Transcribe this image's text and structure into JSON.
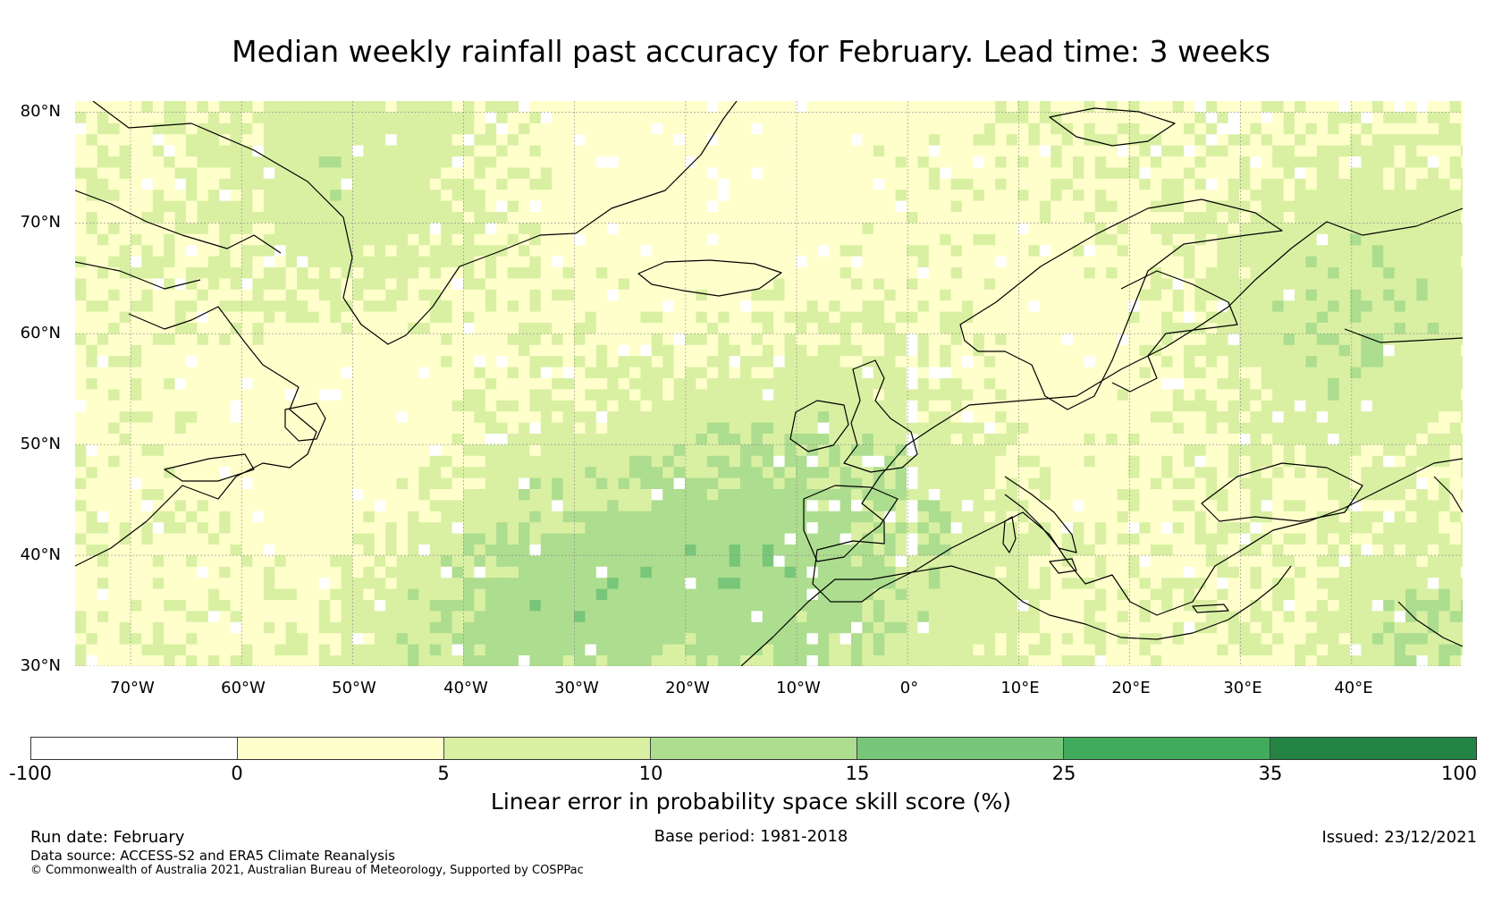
{
  "title": "Median weekly rainfall past accuracy for February. Lead time: 3 weeks",
  "map": {
    "lat_labels": [
      "80°N",
      "70°N",
      "60°N",
      "50°N",
      "40°N",
      "30°N"
    ],
    "lon_labels": [
      "70°W",
      "60°W",
      "50°W",
      "40°W",
      "30°W",
      "20°W",
      "10°W",
      "0°",
      "10°E",
      "20°E",
      "30°E",
      "40°E"
    ],
    "lat_range": [
      30,
      81
    ],
    "lon_range": [
      -75,
      50
    ],
    "coastline_color": "#000000",
    "gridline_color": "#888888"
  },
  "colorbar": {
    "ticks": [
      "-100",
      "0",
      "5",
      "10",
      "15",
      "25",
      "35",
      "100"
    ],
    "colors": [
      "#ffffff",
      "#ffffcc",
      "#d9f0a3",
      "#addd8e",
      "#78c679",
      "#41ab5d",
      "#238443"
    ],
    "label": "Linear error in probability space skill score (%)"
  },
  "footer": {
    "run_date": "Run date: February",
    "base_period": "Base period: 1981-2018",
    "issued": "Issued: 23/12/2021",
    "data_source": "Data source: ACCESS-S2 and ERA5 Climate Reanalysis",
    "copyright": "© Commonwealth of Australia 2021, Australian Bureau of Meteorology, Supported by COSPPac"
  }
}
